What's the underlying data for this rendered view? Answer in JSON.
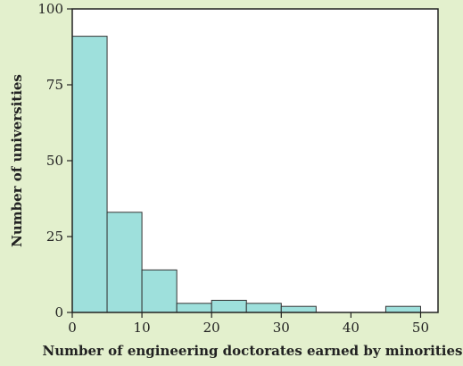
{
  "colors": {
    "background": "#e3f0cd",
    "plot_background": "#ffffff",
    "bar_fill": "#9ee0dc",
    "bar_stroke": "#333333"
  },
  "chart_data": {
    "type": "bar",
    "subtype": "histogram",
    "title": "",
    "xlabel": "Number of engineering doctorates earned by minorities",
    "ylabel": "Number of universities",
    "bin_edges": [
      0,
      5,
      10,
      15,
      20,
      25,
      30,
      35,
      40,
      45,
      50
    ],
    "values": [
      91,
      33,
      14,
      3,
      4,
      3,
      2,
      0,
      0,
      2
    ],
    "xlim": [
      0,
      52.5
    ],
    "ylim": [
      0,
      100
    ],
    "xticks": [
      0,
      10,
      20,
      30,
      40,
      50
    ],
    "yticks": [
      0,
      25,
      50,
      75,
      100
    ],
    "grid": false,
    "legend": "none"
  }
}
